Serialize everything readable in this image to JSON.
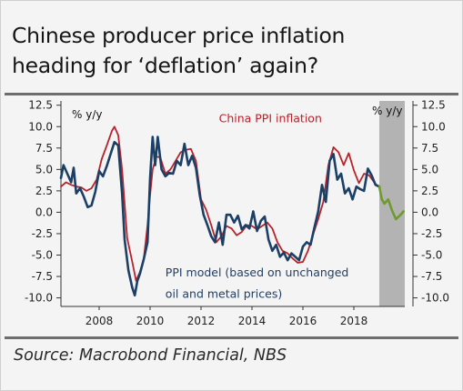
{
  "title_line1": "Chinese producer price inflation",
  "title_line2": "heading for ‘deflation’ again?",
  "source": "Source: Macrobond Financial, NBS",
  "colors": {
    "ppi": "#b8232b",
    "model": "#1b3f66",
    "forecast": "#6f9a2e",
    "shade": "#b3b3b3",
    "axis": "#333333"
  },
  "chart_data": {
    "type": "line",
    "ylabel_left": "% y/y",
    "ylabel_right": "% y/y",
    "ylim": [
      -11,
      13
    ],
    "xlim": [
      2006.5,
      2020.0
    ],
    "y_ticks": [
      12.5,
      10.0,
      7.5,
      5.0,
      2.5,
      0.0,
      -2.5,
      -5.0,
      -7.5,
      -10.0
    ],
    "y_tick_labels": [
      "12.5",
      "10.0",
      "7.5",
      "5.0",
      "2.5",
      "0.0",
      "-2.5",
      "-5.0",
      "-7.5",
      "-10.0"
    ],
    "x_ticks": [
      2008,
      2010,
      2012,
      2014,
      2016,
      2018
    ],
    "x_tick_labels": [
      "2008",
      "2010",
      "2012",
      "2014",
      "2016",
      "2018"
    ],
    "forecast_shade": [
      2019.0,
      2020.0
    ],
    "annotations": {
      "ppi": "China PPI inflation",
      "model_line1": "PPI model (based on unchanged",
      "model_line2": "oil and metal prices)"
    },
    "series": [
      {
        "name": "China PPI inflation",
        "x": [
          2006.5,
          2006.7,
          2006.9,
          2007.1,
          2007.3,
          2007.5,
          2007.7,
          2007.9,
          2008.1,
          2008.3,
          2008.5,
          2008.6,
          2008.75,
          2008.9,
          2009.0,
          2009.1,
          2009.3,
          2009.45,
          2009.6,
          2009.75,
          2009.9,
          2010.0,
          2010.1,
          2010.25,
          2010.4,
          2010.6,
          2010.8,
          2011.0,
          2011.2,
          2011.4,
          2011.6,
          2011.8,
          2012.0,
          2012.2,
          2012.4,
          2012.6,
          2012.8,
          2013.0,
          2013.2,
          2013.4,
          2013.6,
          2013.8,
          2014.0,
          2014.2,
          2014.4,
          2014.6,
          2014.8,
          2015.0,
          2015.2,
          2015.4,
          2015.6,
          2015.8,
          2016.0,
          2016.2,
          2016.4,
          2016.6,
          2016.8,
          2017.0,
          2017.2,
          2017.4,
          2017.6,
          2017.8,
          2018.0,
          2018.2,
          2018.4,
          2018.6,
          2018.8,
          2018.95
        ],
        "values": [
          3.0,
          3.5,
          3.2,
          3.0,
          2.9,
          2.5,
          2.8,
          3.8,
          6.2,
          7.8,
          9.5,
          10.0,
          9.0,
          5.0,
          1.0,
          -3.0,
          -5.8,
          -8.0,
          -7.0,
          -5.5,
          -1.5,
          2.0,
          5.0,
          6.5,
          6.4,
          4.5,
          5.0,
          6.0,
          7.0,
          7.3,
          7.4,
          6.0,
          1.5,
          0.3,
          -1.5,
          -3.5,
          -2.8,
          -1.6,
          -1.9,
          -2.7,
          -2.3,
          -1.5,
          -1.6,
          -2.0,
          -1.6,
          -1.2,
          -1.9,
          -3.5,
          -4.5,
          -4.8,
          -5.4,
          -5.9,
          -5.8,
          -4.5,
          -2.6,
          -0.8,
          1.2,
          5.5,
          7.6,
          7.0,
          5.5,
          6.9,
          4.9,
          3.4,
          4.5,
          4.3,
          3.5,
          3.0
        ]
      },
      {
        "name": "PPI model (based on unchanged oil and metal prices)",
        "x": [
          2006.5,
          2006.6,
          2006.75,
          2006.9,
          2007.0,
          2007.1,
          2007.25,
          2007.4,
          2007.55,
          2007.7,
          2007.85,
          2008.0,
          2008.15,
          2008.3,
          2008.45,
          2008.6,
          2008.75,
          2008.9,
          2009.0,
          2009.15,
          2009.3,
          2009.4,
          2009.5,
          2009.6,
          2009.75,
          2009.9,
          2010.0,
          2010.1,
          2010.2,
          2010.3,
          2010.45,
          2010.6,
          2010.75,
          2010.9,
          2011.05,
          2011.2,
          2011.35,
          2011.5,
          2011.65,
          2011.8,
          2011.95,
          2012.1,
          2012.25,
          2012.4,
          2012.55,
          2012.7,
          2012.85,
          2013.0,
          2013.15,
          2013.3,
          2013.45,
          2013.6,
          2013.75,
          2013.9,
          2014.05,
          2014.2,
          2014.35,
          2014.5,
          2014.65,
          2014.8,
          2014.95,
          2015.1,
          2015.25,
          2015.4,
          2015.55,
          2015.7,
          2015.85,
          2016.0,
          2016.15,
          2016.3,
          2016.45,
          2016.6,
          2016.75,
          2016.9,
          2017.05,
          2017.2,
          2017.35,
          2017.5,
          2017.65,
          2017.8,
          2017.95,
          2018.1,
          2018.25,
          2018.4,
          2018.55,
          2018.7,
          2018.85,
          2019.0
        ],
        "values": [
          4.0,
          5.5,
          4.5,
          3.5,
          5.2,
          2.2,
          2.8,
          1.8,
          0.6,
          0.8,
          2.4,
          4.8,
          4.2,
          5.4,
          6.8,
          8.2,
          7.8,
          2.2,
          -3.2,
          -6.8,
          -8.8,
          -9.7,
          -8.0,
          -7.2,
          -5.5,
          -3.5,
          4.0,
          8.8,
          5.5,
          8.8,
          5.0,
          4.2,
          4.6,
          4.5,
          6.0,
          5.5,
          8.0,
          5.5,
          6.6,
          5.2,
          2.0,
          -0.3,
          -1.5,
          -2.8,
          -3.5,
          -1.2,
          -3.8,
          -0.3,
          -0.3,
          -1.2,
          -0.4,
          -2.0,
          -1.5,
          -1.9,
          0.1,
          -2.2,
          -1.0,
          -0.5,
          -3.2,
          -4.5,
          -3.8,
          -5.2,
          -4.7,
          -5.6,
          -4.8,
          -5.2,
          -5.6,
          -4.0,
          -3.5,
          -3.8,
          -1.8,
          0.1,
          3.2,
          1.2,
          6.0,
          6.8,
          3.8,
          4.5,
          2.2,
          2.8,
          1.5,
          3.0,
          2.7,
          2.5,
          5.1,
          4.3,
          3.2,
          3.0
        ]
      },
      {
        "name": "",
        "x": [
          2019.0,
          2019.1,
          2019.2,
          2019.35,
          2019.5,
          2019.65,
          2019.8,
          2019.95
        ],
        "values": [
          3.0,
          1.5,
          1.0,
          1.5,
          0.2,
          -0.8,
          -0.4,
          0.1
        ]
      }
    ]
  }
}
